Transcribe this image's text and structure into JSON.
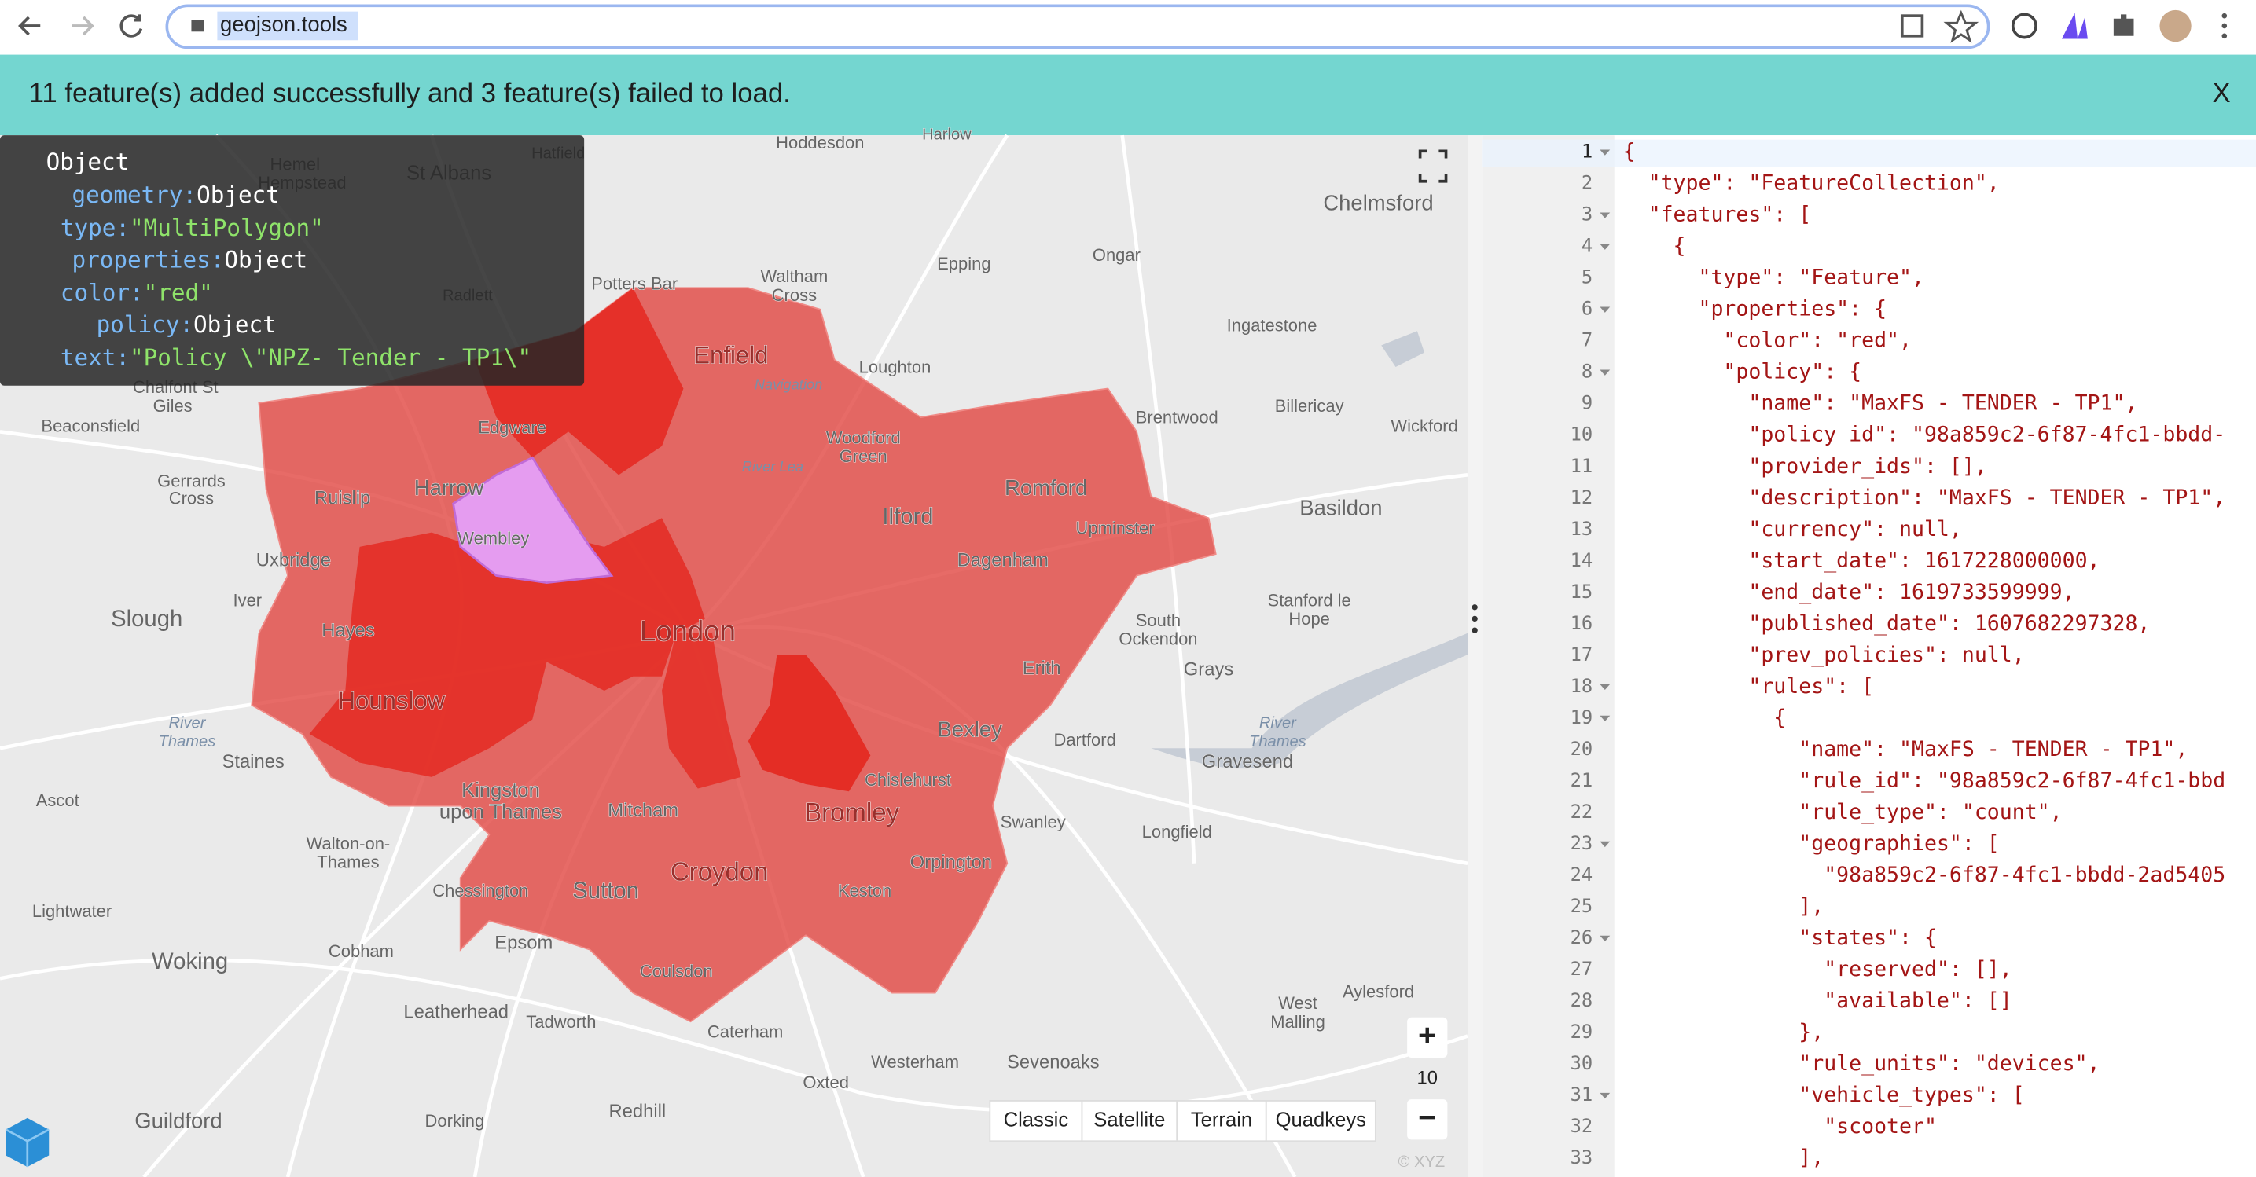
{
  "browser": {
    "url": "geojson.tools"
  },
  "banner": {
    "message": "11 feature(s) added successfully and 3 feature(s) failed to load.",
    "close": "X"
  },
  "map": {
    "places": [
      "Hoddesdon",
      "Harlow",
      "Hemel",
      "Hempstead",
      "St Albans",
      "Hatfield",
      "Chelmsford",
      "Epping",
      "Ongar",
      "Waltham",
      "Cross",
      "Potters Bar",
      "Radlett",
      "Enfield",
      "Ingatestone",
      "Loughton",
      "Chalfont St",
      "Giles",
      "Beaconsfield",
      "Edgware",
      "Woodford",
      "Green",
      "Brentwood",
      "Billericay",
      "Wickford",
      "Gerrards",
      "Cross",
      "Ruislip",
      "Harrow",
      "Ilford",
      "Romford",
      "Upminster",
      "Basildon",
      "Wembley",
      "Uxbridge",
      "Dagenham",
      "Slough",
      "Iver",
      "Hayes",
      "London",
      "South",
      "Ockendon",
      "Stanford le",
      "Hope",
      "Grays",
      "Hounslow",
      "Erith",
      "Bexley",
      "Dartford",
      "Gravesend",
      "Staines",
      "Kingston",
      "upon Thames",
      "Mitcham",
      "Bromley",
      "Chislehurst",
      "Swanley",
      "Ascot",
      "Walton-on-",
      "Thames",
      "Croydon",
      "Orpington",
      "Longfield",
      "Lightwater",
      "Chessington",
      "Sutton",
      "Keston",
      "Woking",
      "Cobham",
      "Epsom",
      "Coulsdon",
      "Leatherhead",
      "Tadworth",
      "Caterham",
      "West",
      "Malling",
      "Aylesford",
      "Westerham",
      "Sevenoaks",
      "Oxted",
      "Guildford",
      "Dorking",
      "Redhill",
      "River",
      "Thames",
      "River",
      "Thames",
      "River Lea",
      "Navigation"
    ],
    "zoom_in": "+",
    "zoom_level": "10",
    "zoom_out": "−",
    "styles": [
      "Classic",
      "Satellite",
      "Terrain",
      "Quadkeys"
    ],
    "attribution": "© XYZ"
  },
  "tooltip": [
    {
      "key": "Object",
      "value": null
    },
    {
      "key": "geometry:",
      "value": "Object"
    },
    {
      "key": "type:",
      "value": "\"MultiPolygon\""
    },
    {
      "key": "properties:",
      "value": "Object"
    },
    {
      "key": "color:",
      "value": "\"red\""
    },
    {
      "key": "policy:",
      "value": "Object"
    },
    {
      "key": "text:",
      "value": "\"Policy \\\"NPZ- Tender - TP1\\\""
    }
  ],
  "editor": {
    "lines": [
      {
        "n": 1,
        "text": "{"
      },
      {
        "n": 2,
        "text": "  \"type\": \"FeatureCollection\","
      },
      {
        "n": 3,
        "text": "  \"features\": ["
      },
      {
        "n": 4,
        "text": "    {"
      },
      {
        "n": 5,
        "text": "      \"type\": \"Feature\","
      },
      {
        "n": 6,
        "text": "      \"properties\": {"
      },
      {
        "n": 7,
        "text": "        \"color\": \"red\","
      },
      {
        "n": 8,
        "text": "        \"policy\": {"
      },
      {
        "n": 9,
        "text": "          \"name\": \"MaxFS - TENDER - TP1\","
      },
      {
        "n": 10,
        "text": "          \"policy_id\": \"98a859c2-6f87-4fc1-bbdd-"
      },
      {
        "n": 11,
        "text": "          \"provider_ids\": [],"
      },
      {
        "n": 12,
        "text": "          \"description\": \"MaxFS - TENDER - TP1\","
      },
      {
        "n": 13,
        "text": "          \"currency\": null,"
      },
      {
        "n": 14,
        "text": "          \"start_date\": 1617228000000,"
      },
      {
        "n": 15,
        "text": "          \"end_date\": 1619733599999,"
      },
      {
        "n": 16,
        "text": "          \"published_date\": 1607682297328,"
      },
      {
        "n": 17,
        "text": "          \"prev_policies\": null,"
      },
      {
        "n": 18,
        "text": "          \"rules\": ["
      },
      {
        "n": 19,
        "text": "            {"
      },
      {
        "n": 20,
        "text": "              \"name\": \"MaxFS - TENDER - TP1\","
      },
      {
        "n": 21,
        "text": "              \"rule_id\": \"98a859c2-6f87-4fc1-bbd"
      },
      {
        "n": 22,
        "text": "              \"rule_type\": \"count\","
      },
      {
        "n": 23,
        "text": "              \"geographies\": ["
      },
      {
        "n": 24,
        "text": "                \"98a859c2-6f87-4fc1-bbdd-2ad5405"
      },
      {
        "n": 25,
        "text": "              ],"
      },
      {
        "n": 26,
        "text": "              \"states\": {"
      },
      {
        "n": 27,
        "text": "                \"reserved\": [],"
      },
      {
        "n": 28,
        "text": "                \"available\": []"
      },
      {
        "n": 29,
        "text": "              },"
      },
      {
        "n": 30,
        "text": "              \"rule_units\": \"devices\","
      },
      {
        "n": 31,
        "text": "              \"vehicle_types\": ["
      },
      {
        "n": 32,
        "text": "                \"scooter\""
      },
      {
        "n": 33,
        "text": "              ],"
      }
    ]
  }
}
